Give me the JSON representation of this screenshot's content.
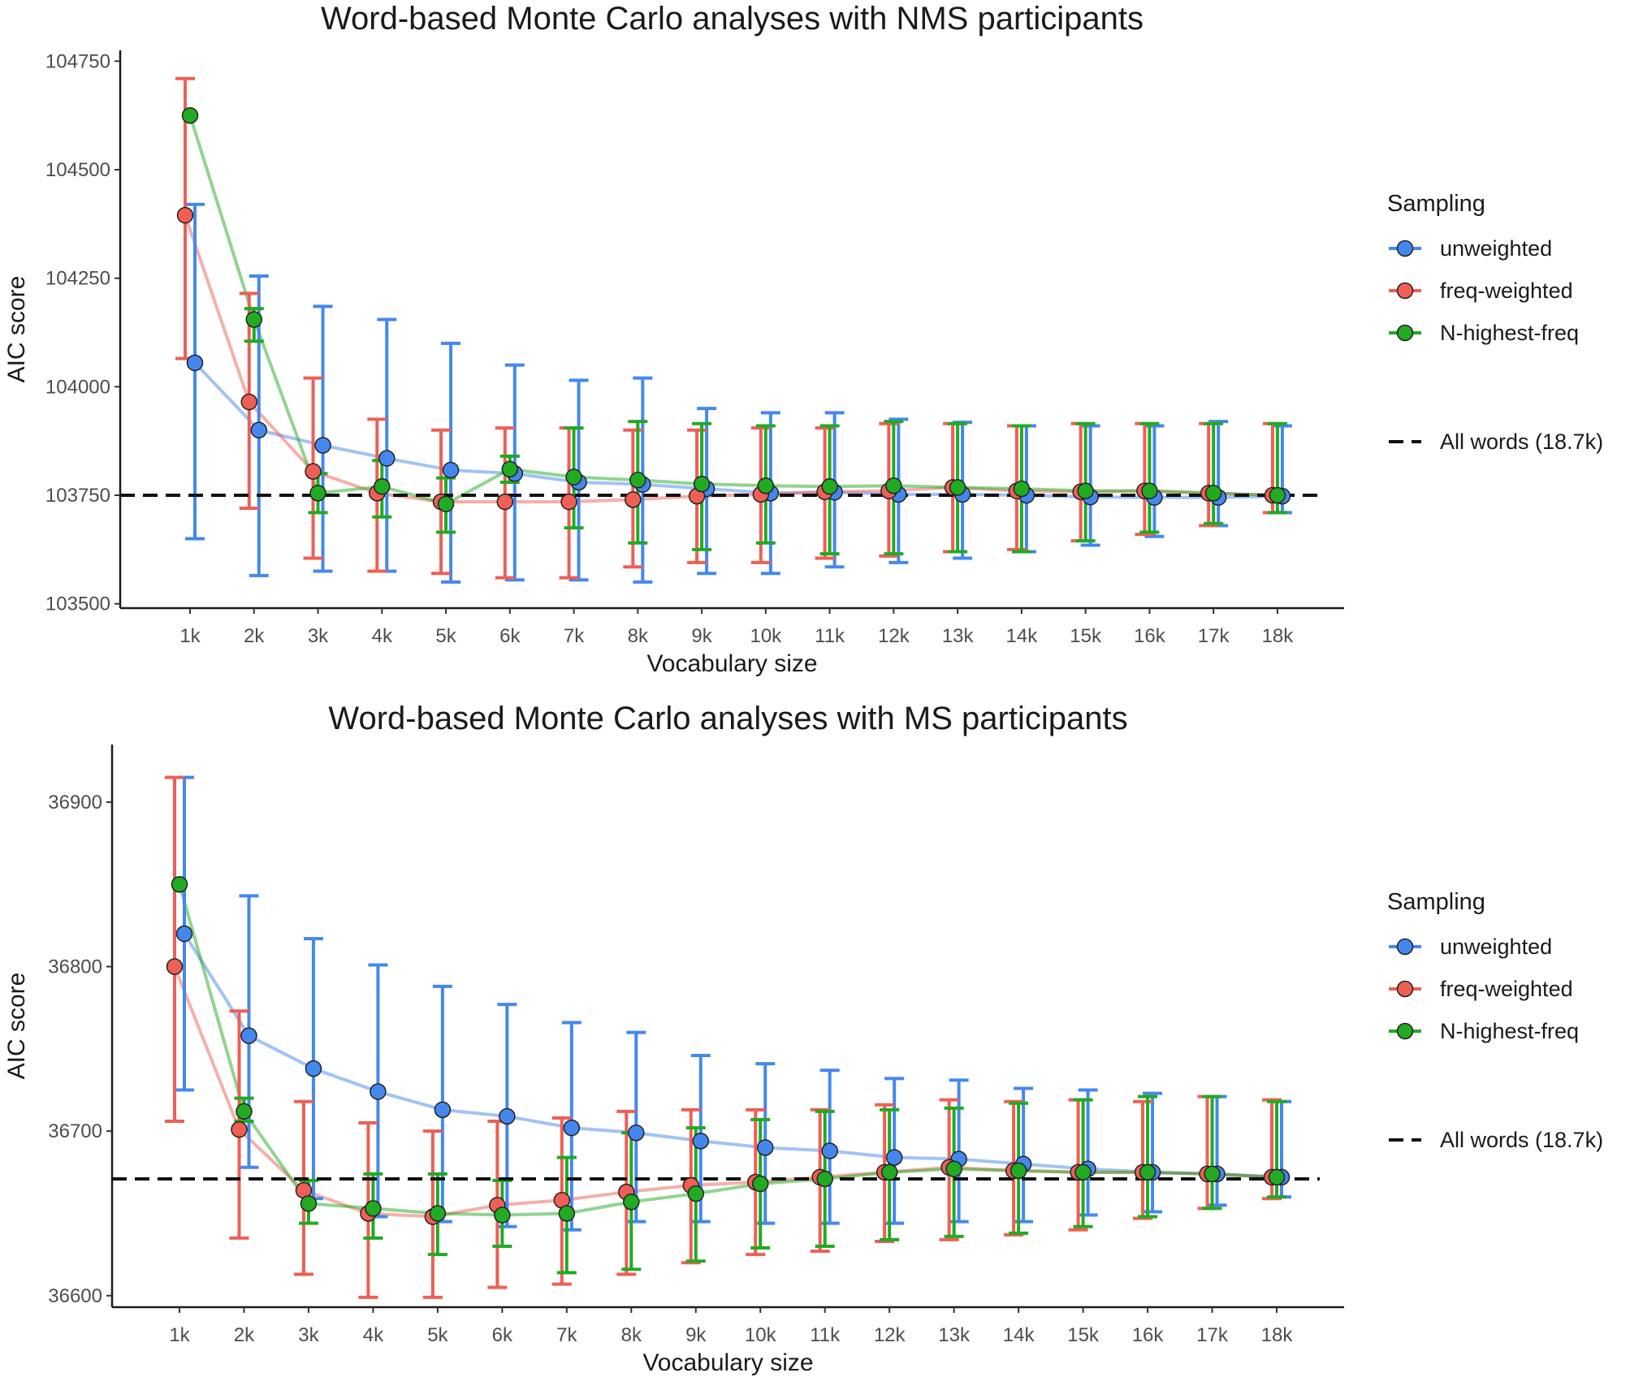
{
  "chart_data": [
    {
      "type": "line",
      "title": "Word-based Monte Carlo analyses with NMS participants",
      "xlabel": "Vocabulary size",
      "ylabel": "AIC score",
      "categories": [
        "1k",
        "2k",
        "3k",
        "4k",
        "5k",
        "6k",
        "7k",
        "8k",
        "9k",
        "10k",
        "11k",
        "12k",
        "13k",
        "14k",
        "15k",
        "16k",
        "17k",
        "18k"
      ],
      "ylim": [
        103490,
        104775
      ],
      "yticks": [
        103500,
        103750,
        104000,
        104250,
        104500,
        104750
      ],
      "yticklabels": [
        "103500",
        "103750",
        "104000",
        "104250",
        "104500",
        "104750"
      ],
      "reference_line": {
        "label": "All words (18.7k)",
        "value": 103750
      },
      "legend_title": "Sampling",
      "series": [
        {
          "name": "unweighted",
          "color": "#4488ee",
          "values": [
            104055,
            103900,
            103865,
            103835,
            103808,
            103800,
            103780,
            103775,
            103765,
            103755,
            103757,
            103752,
            103752,
            103750,
            103746,
            103745,
            103745,
            103748
          ],
          "upper": [
            104420,
            104255,
            104185,
            104155,
            104100,
            104050,
            104015,
            104020,
            103950,
            103940,
            103940,
            103925,
            103918,
            103910,
            103910,
            103910,
            103920,
            103910
          ],
          "lower": [
            103650,
            103565,
            103575,
            103575,
            103550,
            103555,
            103555,
            103550,
            103570,
            103570,
            103585,
            103595,
            103605,
            103620,
            103635,
            103655,
            103680,
            103710
          ]
        },
        {
          "name": "freq-weighted",
          "color": "#ee5f55",
          "values": [
            104395,
            103965,
            103805,
            103755,
            103735,
            103735,
            103735,
            103740,
            103748,
            103752,
            103758,
            103760,
            103768,
            103760,
            103758,
            103760,
            103755,
            103750
          ],
          "upper": [
            104710,
            104215,
            104020,
            103925,
            103900,
            103905,
            103905,
            103900,
            103900,
            103905,
            103905,
            103915,
            103915,
            103910,
            103915,
            103915,
            103915,
            103915
          ],
          "lower": [
            104065,
            103720,
            103605,
            103575,
            103570,
            103560,
            103560,
            103585,
            103595,
            103595,
            103605,
            103610,
            103620,
            103625,
            103645,
            103660,
            103680,
            103710
          ]
        },
        {
          "name": "N-highest-freq",
          "color": "#22aa22",
          "values": [
            104625,
            104155,
            103755,
            103770,
            103730,
            103810,
            103792,
            103785,
            103776,
            103772,
            103770,
            103772,
            103768,
            103765,
            103760,
            103760,
            103755,
            103750
          ],
          "upper": [
            104625,
            104180,
            103800,
            103830,
            103790,
            103840,
            103905,
            103920,
            103915,
            103910,
            103910,
            103920,
            103915,
            103910,
            103915,
            103915,
            103915,
            103915
          ],
          "lower": [
            104625,
            104105,
            103710,
            103700,
            103665,
            103780,
            103675,
            103640,
            103625,
            103640,
            103615,
            103615,
            103620,
            103620,
            103645,
            103665,
            103685,
            103710
          ]
        }
      ]
    },
    {
      "type": "line",
      "title": "Word-based Monte Carlo analyses with MS participants",
      "xlabel": "Vocabulary size",
      "ylabel": "AIC score",
      "categories": [
        "1k",
        "2k",
        "3k",
        "4k",
        "5k",
        "6k",
        "7k",
        "8k",
        "9k",
        "10k",
        "11k",
        "12k",
        "13k",
        "14k",
        "15k",
        "16k",
        "17k",
        "18k"
      ],
      "ylim": [
        36593,
        36935
      ],
      "yticks": [
        36600,
        36700,
        36800,
        36900
      ],
      "yticklabels": [
        "36600",
        "36700",
        "36800",
        "36900"
      ],
      "reference_line": {
        "label": "All words (18.7k)",
        "value": 36671
      },
      "legend_title": "Sampling",
      "series": [
        {
          "name": "unweighted",
          "color": "#4488ee",
          "values": [
            36820,
            36758,
            36738,
            36724,
            36713,
            36709,
            36702,
            36699,
            36694,
            36690,
            36688,
            36684,
            36683,
            36680,
            36677,
            36675,
            36674,
            36672
          ],
          "upper": [
            36915,
            36843,
            36817,
            36801,
            36788,
            36777,
            36766,
            36760,
            36746,
            36741,
            36737,
            36732,
            36731,
            36726,
            36725,
            36723,
            36721,
            36718
          ],
          "lower": [
            36725,
            36678,
            36659,
            36648,
            36645,
            36642,
            36640,
            36645,
            36645,
            36644,
            36644,
            36644,
            36645,
            36645,
            36649,
            36651,
            36655,
            36660
          ]
        },
        {
          "name": "freq-weighted",
          "color": "#ee5f55",
          "values": [
            36800,
            36701,
            36664,
            36650,
            36648,
            36655,
            36658,
            36663,
            36667,
            36669,
            36672,
            36675,
            36678,
            36676,
            36675,
            36675,
            36674,
            36672
          ],
          "upper": [
            36915,
            36773,
            36718,
            36705,
            36700,
            36706,
            36708,
            36712,
            36713,
            36713,
            36713,
            36716,
            36719,
            36718,
            36719,
            36718,
            36721,
            36719
          ],
          "lower": [
            36706,
            36635,
            36613,
            36599,
            36599,
            36605,
            36607,
            36613,
            36620,
            36625,
            36627,
            36633,
            36634,
            36637,
            36640,
            36647,
            36653,
            36659
          ]
        },
        {
          "name": "N-highest-freq",
          "color": "#22aa22",
          "values": [
            36850,
            36712,
            36656,
            36653,
            36650,
            36649,
            36650,
            36657,
            36662,
            36668,
            36671,
            36675,
            36677,
            36676,
            36675,
            36675,
            36674,
            36672
          ],
          "upper": [
            36850,
            36720,
            36670,
            36674,
            36674,
            36670,
            36684,
            36699,
            36702,
            36707,
            36712,
            36713,
            36714,
            36717,
            36719,
            36721,
            36721,
            36718
          ],
          "lower": [
            36850,
            36706,
            36644,
            36635,
            36625,
            36630,
            36614,
            36616,
            36621,
            36629,
            36630,
            36634,
            36636,
            36638,
            36642,
            36648,
            36653,
            36660
          ]
        }
      ]
    }
  ]
}
